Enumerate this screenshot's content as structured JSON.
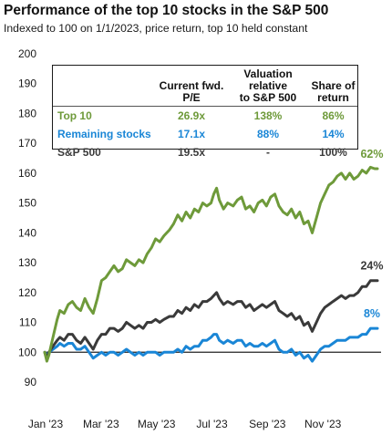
{
  "title": "Performance of the top 10 stocks in the S&P 500",
  "subtitle": "Indexed to 100 on 1/1/2023, price return, top 10 held constant",
  "colors": {
    "top10": "#6e9a3a",
    "remaining": "#1a86d6",
    "sp500": "#3a3a3a"
  },
  "table": {
    "headers": [
      "",
      "Current fwd.\nP/E",
      "Valuation relative\nto S&P 500",
      "Share of\nreturn"
    ],
    "rows": [
      {
        "name": "Top 10",
        "pe": "26.9x",
        "rel": "138%",
        "share": "86%",
        "color": "#6e9a3a"
      },
      {
        "name": "Remaining stocks",
        "pe": "17.1x",
        "rel": "88%",
        "share": "14%",
        "color": "#1a86d6"
      },
      {
        "name": "S&P 500",
        "pe": "19.5x",
        "rel": "-",
        "share": "100%",
        "color": "#3a3a3a"
      }
    ]
  },
  "chart_data": {
    "type": "line",
    "title": "Performance of the top 10 stocks in the S&P 500",
    "subtitle": "Indexed to 100 on 1/1/2023, price return, top 10 held constant",
    "xlabel": "",
    "ylabel": "",
    "ylim": [
      90,
      200
    ],
    "yticks": [
      90,
      100,
      110,
      120,
      130,
      140,
      150,
      160,
      170,
      180,
      190,
      200
    ],
    "xlim": [
      0,
      12
    ],
    "xticks": [
      {
        "label": "Jan '23",
        "x": 0
      },
      {
        "label": "Mar '23",
        "x": 2
      },
      {
        "label": "May '23",
        "x": 4
      },
      {
        "label": "Jul '23",
        "x": 6
      },
      {
        "label": "Sep '23",
        "x": 8
      },
      {
        "label": "Nov '23",
        "x": 10
      }
    ],
    "grid": false,
    "end_labels": [
      {
        "text": "62%",
        "series": "Top 10"
      },
      {
        "text": "24%",
        "series": "S&P 500"
      },
      {
        "text": "8%",
        "series": "Remaining stocks"
      }
    ],
    "series": [
      {
        "name": "Top 10",
        "color": "#6e9a3a",
        "points": [
          [
            0,
            100
          ],
          [
            0.08,
            97
          ],
          [
            0.15,
            99
          ],
          [
            0.3,
            105
          ],
          [
            0.45,
            111
          ],
          [
            0.55,
            114
          ],
          [
            0.7,
            113
          ],
          [
            0.85,
            116
          ],
          [
            1.0,
            117
          ],
          [
            1.15,
            115
          ],
          [
            1.3,
            114
          ],
          [
            1.45,
            118
          ],
          [
            1.6,
            115
          ],
          [
            1.75,
            113
          ],
          [
            1.9,
            118
          ],
          [
            2.05,
            124
          ],
          [
            2.2,
            125
          ],
          [
            2.35,
            127
          ],
          [
            2.5,
            129
          ],
          [
            2.65,
            127
          ],
          [
            2.8,
            128
          ],
          [
            2.95,
            131
          ],
          [
            3.1,
            130
          ],
          [
            3.25,
            129
          ],
          [
            3.4,
            131
          ],
          [
            3.55,
            130
          ],
          [
            3.7,
            133
          ],
          [
            3.85,
            135
          ],
          [
            4.0,
            138
          ],
          [
            4.15,
            137
          ],
          [
            4.3,
            139
          ],
          [
            4.5,
            141
          ],
          [
            4.65,
            143
          ],
          [
            4.8,
            146
          ],
          [
            4.95,
            144
          ],
          [
            5.1,
            147
          ],
          [
            5.25,
            145
          ],
          [
            5.4,
            148
          ],
          [
            5.55,
            147
          ],
          [
            5.7,
            150
          ],
          [
            5.85,
            149
          ],
          [
            6.0,
            150
          ],
          [
            6.1,
            153
          ],
          [
            6.2,
            155
          ],
          [
            6.3,
            151
          ],
          [
            6.45,
            148
          ],
          [
            6.6,
            150
          ],
          [
            6.8,
            149
          ],
          [
            6.95,
            151
          ],
          [
            7.1,
            152
          ],
          [
            7.25,
            148
          ],
          [
            7.4,
            149
          ],
          [
            7.55,
            147
          ],
          [
            7.7,
            150
          ],
          [
            7.85,
            151
          ],
          [
            8.0,
            149
          ],
          [
            8.15,
            152
          ],
          [
            8.3,
            153
          ],
          [
            8.45,
            149
          ],
          [
            8.6,
            147
          ],
          [
            8.75,
            146
          ],
          [
            8.9,
            148
          ],
          [
            9.05,
            145
          ],
          [
            9.2,
            147
          ],
          [
            9.35,
            143
          ],
          [
            9.5,
            144
          ],
          [
            9.65,
            140
          ],
          [
            9.8,
            145
          ],
          [
            9.95,
            150
          ],
          [
            10.1,
            153
          ],
          [
            10.25,
            156
          ],
          [
            10.4,
            157
          ],
          [
            10.55,
            159
          ],
          [
            10.7,
            160
          ],
          [
            10.85,
            158
          ],
          [
            11.0,
            160
          ],
          [
            11.15,
            158
          ],
          [
            11.3,
            159
          ],
          [
            11.45,
            161
          ],
          [
            11.6,
            160
          ],
          [
            11.75,
            162
          ],
          [
            11.9,
            161.5
          ],
          [
            12.0,
            161.5
          ]
        ]
      },
      {
        "name": "S&P 500",
        "color": "#3a3a3a",
        "points": [
          [
            0,
            100
          ],
          [
            0.08,
            98
          ],
          [
            0.15,
            100
          ],
          [
            0.3,
            102
          ],
          [
            0.45,
            104
          ],
          [
            0.55,
            105
          ],
          [
            0.7,
            104
          ],
          [
            0.85,
            106
          ],
          [
            1.0,
            106
          ],
          [
            1.15,
            104
          ],
          [
            1.3,
            103
          ],
          [
            1.45,
            105
          ],
          [
            1.6,
            103
          ],
          [
            1.75,
            101
          ],
          [
            1.9,
            104
          ],
          [
            2.05,
            106
          ],
          [
            2.2,
            106
          ],
          [
            2.35,
            108
          ],
          [
            2.5,
            108
          ],
          [
            2.65,
            107
          ],
          [
            2.8,
            108
          ],
          [
            2.95,
            110
          ],
          [
            3.1,
            109
          ],
          [
            3.25,
            108
          ],
          [
            3.4,
            109
          ],
          [
            3.55,
            108
          ],
          [
            3.7,
            110
          ],
          [
            3.85,
            110
          ],
          [
            4.0,
            111
          ],
          [
            4.15,
            110
          ],
          [
            4.3,
            111
          ],
          [
            4.5,
            112
          ],
          [
            4.65,
            112
          ],
          [
            4.8,
            114
          ],
          [
            4.95,
            113
          ],
          [
            5.1,
            115
          ],
          [
            5.25,
            114
          ],
          [
            5.4,
            116
          ],
          [
            5.55,
            115
          ],
          [
            5.7,
            117
          ],
          [
            5.85,
            117
          ],
          [
            6.0,
            118
          ],
          [
            6.1,
            119
          ],
          [
            6.2,
            120
          ],
          [
            6.3,
            118
          ],
          [
            6.45,
            116
          ],
          [
            6.6,
            117
          ],
          [
            6.8,
            116
          ],
          [
            6.95,
            117
          ],
          [
            7.1,
            117
          ],
          [
            7.25,
            115
          ],
          [
            7.4,
            116
          ],
          [
            7.55,
            114
          ],
          [
            7.7,
            115
          ],
          [
            7.85,
            116
          ],
          [
            8.0,
            115
          ],
          [
            8.15,
            116
          ],
          [
            8.3,
            117
          ],
          [
            8.45,
            114
          ],
          [
            8.6,
            113
          ],
          [
            8.75,
            112
          ],
          [
            8.9,
            113
          ],
          [
            9.05,
            111
          ],
          [
            9.2,
            112
          ],
          [
            9.35,
            109
          ],
          [
            9.5,
            110
          ],
          [
            9.65,
            107
          ],
          [
            9.8,
            110
          ],
          [
            9.95,
            113
          ],
          [
            10.1,
            115
          ],
          [
            10.25,
            116
          ],
          [
            10.4,
            117
          ],
          [
            10.55,
            118
          ],
          [
            10.7,
            119
          ],
          [
            10.85,
            118
          ],
          [
            11.0,
            119
          ],
          [
            11.15,
            119
          ],
          [
            11.3,
            120
          ],
          [
            11.45,
            122
          ],
          [
            11.6,
            122
          ],
          [
            11.75,
            124
          ],
          [
            11.9,
            124
          ],
          [
            12.0,
            124
          ]
        ]
      },
      {
        "name": "Remaining stocks",
        "color": "#1a86d6",
        "points": [
          [
            0,
            100
          ],
          [
            0.08,
            99
          ],
          [
            0.15,
            100
          ],
          [
            0.3,
            101
          ],
          [
            0.45,
            102
          ],
          [
            0.55,
            103
          ],
          [
            0.7,
            102
          ],
          [
            0.85,
            103
          ],
          [
            1.0,
            103
          ],
          [
            1.15,
            101
          ],
          [
            1.3,
            101
          ],
          [
            1.45,
            102
          ],
          [
            1.6,
            100
          ],
          [
            1.75,
            98
          ],
          [
            1.9,
            99
          ],
          [
            2.05,
            100
          ],
          [
            2.2,
            99
          ],
          [
            2.35,
            100
          ],
          [
            2.5,
            100
          ],
          [
            2.65,
            99
          ],
          [
            2.8,
            100
          ],
          [
            2.95,
            101
          ],
          [
            3.1,
            100
          ],
          [
            3.25,
            99
          ],
          [
            3.4,
            100
          ],
          [
            3.55,
            99
          ],
          [
            3.7,
            100
          ],
          [
            3.85,
            100
          ],
          [
            4.0,
            100
          ],
          [
            4.15,
            99
          ],
          [
            4.3,
            100
          ],
          [
            4.5,
            100
          ],
          [
            4.65,
            100
          ],
          [
            4.8,
            101
          ],
          [
            4.95,
            100
          ],
          [
            5.1,
            102
          ],
          [
            5.25,
            101
          ],
          [
            5.4,
            102
          ],
          [
            5.55,
            102
          ],
          [
            5.7,
            104
          ],
          [
            5.85,
            104
          ],
          [
            6.0,
            105
          ],
          [
            6.1,
            106
          ],
          [
            6.2,
            106
          ],
          [
            6.3,
            104
          ],
          [
            6.45,
            103
          ],
          [
            6.6,
            104
          ],
          [
            6.8,
            103
          ],
          [
            6.95,
            104
          ],
          [
            7.1,
            104
          ],
          [
            7.25,
            102
          ],
          [
            7.4,
            103
          ],
          [
            7.55,
            102
          ],
          [
            7.7,
            102
          ],
          [
            7.85,
            103
          ],
          [
            8.0,
            102
          ],
          [
            8.15,
            103
          ],
          [
            8.3,
            104
          ],
          [
            8.45,
            101
          ],
          [
            8.6,
            100
          ],
          [
            8.75,
            100
          ],
          [
            8.9,
            101
          ],
          [
            9.05,
            99
          ],
          [
            9.2,
            100
          ],
          [
            9.35,
            98
          ],
          [
            9.5,
            99
          ],
          [
            9.65,
            97
          ],
          [
            9.8,
            99
          ],
          [
            9.95,
            101
          ],
          [
            10.1,
            102
          ],
          [
            10.25,
            102
          ],
          [
            10.4,
            103
          ],
          [
            10.55,
            104
          ],
          [
            10.7,
            104
          ],
          [
            10.85,
            104
          ],
          [
            11.0,
            105
          ],
          [
            11.15,
            105
          ],
          [
            11.3,
            105
          ],
          [
            11.45,
            106
          ],
          [
            11.6,
            106
          ],
          [
            11.75,
            108
          ],
          [
            11.9,
            108
          ],
          [
            12.0,
            108
          ]
        ]
      }
    ]
  }
}
